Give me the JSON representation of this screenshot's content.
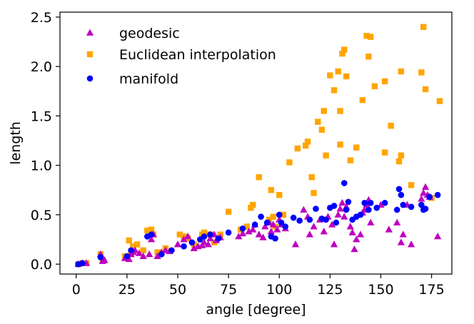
{
  "chart_data": {
    "type": "scatter",
    "title": "",
    "xlabel": "angle [degree]",
    "ylabel": "length",
    "xlim": [
      -8,
      185
    ],
    "ylim": [
      -0.1,
      2.55
    ],
    "xticks": [
      "0",
      "25",
      "50",
      "75",
      "100",
      "125",
      "150",
      "175"
    ],
    "xtick_values": [
      0,
      25,
      50,
      75,
      100,
      125,
      150,
      175
    ],
    "yticks": [
      "0.0",
      "0.5",
      "1.0",
      "1.5",
      "2.0",
      "2.5"
    ],
    "ytick_values": [
      0.0,
      0.5,
      1.0,
      1.5,
      2.0,
      2.5
    ],
    "legend_position": "upper-left",
    "series": [
      {
        "name": "geodesic",
        "marker": "triangle",
        "color": "#bf00bf",
        "points": [
          [
            1,
            0.0
          ],
          [
            3,
            0.01
          ],
          [
            5,
            0.01
          ],
          [
            12,
            0.1
          ],
          [
            13,
            0.03
          ],
          [
            14,
            0.04
          ],
          [
            24,
            0.06
          ],
          [
            26,
            0.05
          ],
          [
            27,
            0.1
          ],
          [
            28,
            0.12
          ],
          [
            29,
            0.14
          ],
          [
            31,
            0.11
          ],
          [
            33,
            0.08
          ],
          [
            36,
            0.1
          ],
          [
            37,
            0.25
          ],
          [
            38,
            0.3
          ],
          [
            40,
            0.08
          ],
          [
            42,
            0.12
          ],
          [
            44,
            0.14
          ],
          [
            46,
            0.13
          ],
          [
            50,
            0.2
          ],
          [
            53,
            0.25
          ],
          [
            55,
            0.28
          ],
          [
            58,
            0.16
          ],
          [
            60,
            0.18
          ],
          [
            62,
            0.19
          ],
          [
            63,
            0.22
          ],
          [
            65,
            0.2
          ],
          [
            66,
            0.26
          ],
          [
            68,
            0.3
          ],
          [
            69,
            0.24
          ],
          [
            71,
            0.27
          ],
          [
            80,
            0.28
          ],
          [
            82,
            0.31
          ],
          [
            85,
            0.33
          ],
          [
            87,
            0.35
          ],
          [
            88,
            0.4
          ],
          [
            90,
            0.3
          ],
          [
            92,
            0.27
          ],
          [
            93,
            0.38
          ],
          [
            95,
            0.42
          ],
          [
            96,
            0.33
          ],
          [
            97,
            0.4
          ],
          [
            99,
            0.35
          ],
          [
            100,
            0.45
          ],
          [
            101,
            0.4
          ],
          [
            103,
            0.36
          ],
          [
            108,
            0.2
          ],
          [
            112,
            0.55
          ],
          [
            114,
            0.48
          ],
          [
            115,
            0.3
          ],
          [
            117,
            0.38
          ],
          [
            120,
            0.45
          ],
          [
            122,
            0.33
          ],
          [
            124,
            0.48
          ],
          [
            126,
            0.4
          ],
          [
            127,
            0.2
          ],
          [
            129,
            0.5
          ],
          [
            130,
            0.56
          ],
          [
            131,
            0.62
          ],
          [
            132,
            0.48
          ],
          [
            133,
            0.58
          ],
          [
            135,
            0.38
          ],
          [
            136,
            0.32
          ],
          [
            137,
            0.15
          ],
          [
            138,
            0.25
          ],
          [
            140,
            0.3
          ],
          [
            141,
            0.52
          ],
          [
            142,
            0.55
          ],
          [
            143,
            0.6
          ],
          [
            144,
            0.65
          ],
          [
            145,
            0.42
          ],
          [
            150,
            0.6
          ],
          [
            154,
            0.35
          ],
          [
            158,
            0.42
          ],
          [
            160,
            0.22
          ],
          [
            161,
            0.3
          ],
          [
            163,
            0.6
          ],
          [
            165,
            0.2
          ],
          [
            170,
            0.66
          ],
          [
            171,
            0.72
          ],
          [
            172,
            0.78
          ],
          [
            173,
            0.7
          ],
          [
            174,
            0.68
          ],
          [
            178,
            0.28
          ]
        ]
      },
      {
        "name": "Euclidean interpolation",
        "marker": "square",
        "color": "#ffa500",
        "points": [
          [
            1,
            0.0
          ],
          [
            3,
            0.01
          ],
          [
            5,
            0.01
          ],
          [
            12,
            0.1
          ],
          [
            13,
            0.04
          ],
          [
            24,
            0.08
          ],
          [
            26,
            0.24
          ],
          [
            27,
            0.1
          ],
          [
            28,
            0.18
          ],
          [
            30,
            0.2
          ],
          [
            33,
            0.14
          ],
          [
            35,
            0.34
          ],
          [
            37,
            0.35
          ],
          [
            38,
            0.3
          ],
          [
            40,
            0.12
          ],
          [
            44,
            0.16
          ],
          [
            51,
            0.3
          ],
          [
            53,
            0.28
          ],
          [
            55,
            0.26
          ],
          [
            58,
            0.2
          ],
          [
            62,
            0.3
          ],
          [
            63,
            0.32
          ],
          [
            66,
            0.3
          ],
          [
            68,
            0.22
          ],
          [
            71,
            0.3
          ],
          [
            75,
            0.53
          ],
          [
            81,
            0.35
          ],
          [
            84,
            0.38
          ],
          [
            86,
            0.57
          ],
          [
            87,
            0.6
          ],
          [
            90,
            0.88
          ],
          [
            95,
            0.45
          ],
          [
            96,
            0.75
          ],
          [
            97,
            0.48
          ],
          [
            98,
            0.38
          ],
          [
            100,
            0.7
          ],
          [
            102,
            0.5
          ],
          [
            105,
            1.03
          ],
          [
            109,
            1.17
          ],
          [
            113,
            1.2
          ],
          [
            114,
            1.24
          ],
          [
            116,
            0.88
          ],
          [
            117,
            0.72
          ],
          [
            119,
            1.44
          ],
          [
            121,
            1.36
          ],
          [
            122,
            1.55
          ],
          [
            123,
            1.1
          ],
          [
            125,
            1.91
          ],
          [
            127,
            1.76
          ],
          [
            129,
            1.95
          ],
          [
            130,
            1.55
          ],
          [
            130,
            1.21
          ],
          [
            131,
            2.13
          ],
          [
            132,
            2.17
          ],
          [
            133,
            1.9
          ],
          [
            135,
            1.05
          ],
          [
            138,
            1.18
          ],
          [
            141,
            1.66
          ],
          [
            143,
            2.31
          ],
          [
            144,
            2.1
          ],
          [
            145,
            2.3
          ],
          [
            147,
            1.8
          ],
          [
            152,
            1.85
          ],
          [
            152,
            1.13
          ],
          [
            155,
            1.4
          ],
          [
            159,
            1.04
          ],
          [
            160,
            1.1
          ],
          [
            160,
            1.95
          ],
          [
            165,
            0.8
          ],
          [
            170,
            1.94
          ],
          [
            171,
            2.4
          ],
          [
            172,
            1.77
          ],
          [
            175,
            0.67
          ],
          [
            179,
            1.65
          ]
        ]
      },
      {
        "name": "manifold",
        "marker": "circle",
        "color": "#0000ff",
        "points": [
          [
            1,
            0.0
          ],
          [
            3,
            0.01
          ],
          [
            12,
            0.07
          ],
          [
            25,
            0.08
          ],
          [
            27,
            0.14
          ],
          [
            35,
            0.28
          ],
          [
            37,
            0.3
          ],
          [
            42,
            0.1
          ],
          [
            47,
            0.14
          ],
          [
            53,
            0.18
          ],
          [
            57,
            0.22
          ],
          [
            61,
            0.25
          ],
          [
            63,
            0.28
          ],
          [
            66,
            0.3
          ],
          [
            70,
            0.26
          ],
          [
            75,
            0.32
          ],
          [
            82,
            0.36
          ],
          [
            88,
            0.4
          ],
          [
            91,
            0.48
          ],
          [
            94,
            0.42
          ],
          [
            96,
            0.28
          ],
          [
            98,
            0.26
          ],
          [
            100,
            0.5
          ],
          [
            101,
            0.42
          ],
          [
            103,
            0.38
          ],
          [
            107,
            0.47
          ],
          [
            110,
            0.44
          ],
          [
            115,
            0.45
          ],
          [
            118,
            0.56
          ],
          [
            121,
            0.46
          ],
          [
            123,
            0.45
          ],
          [
            125,
            0.57
          ],
          [
            127,
            0.59
          ],
          [
            128,
            0.42
          ],
          [
            132,
            0.82
          ],
          [
            133,
            0.55
          ],
          [
            134,
            0.63
          ],
          [
            136,
            0.45
          ],
          [
            138,
            0.48
          ],
          [
            140,
            0.5
          ],
          [
            142,
            0.62
          ],
          [
            144,
            0.55
          ],
          [
            145,
            0.62
          ],
          [
            148,
            0.57
          ],
          [
            152,
            0.62
          ],
          [
            158,
            0.55
          ],
          [
            159,
            0.76
          ],
          [
            160,
            0.7
          ],
          [
            161,
            0.6
          ],
          [
            165,
            0.58
          ],
          [
            170,
            0.6
          ],
          [
            171,
            0.55
          ],
          [
            172,
            0.56
          ],
          [
            174,
            0.68
          ],
          [
            178,
            0.7
          ]
        ]
      }
    ]
  }
}
